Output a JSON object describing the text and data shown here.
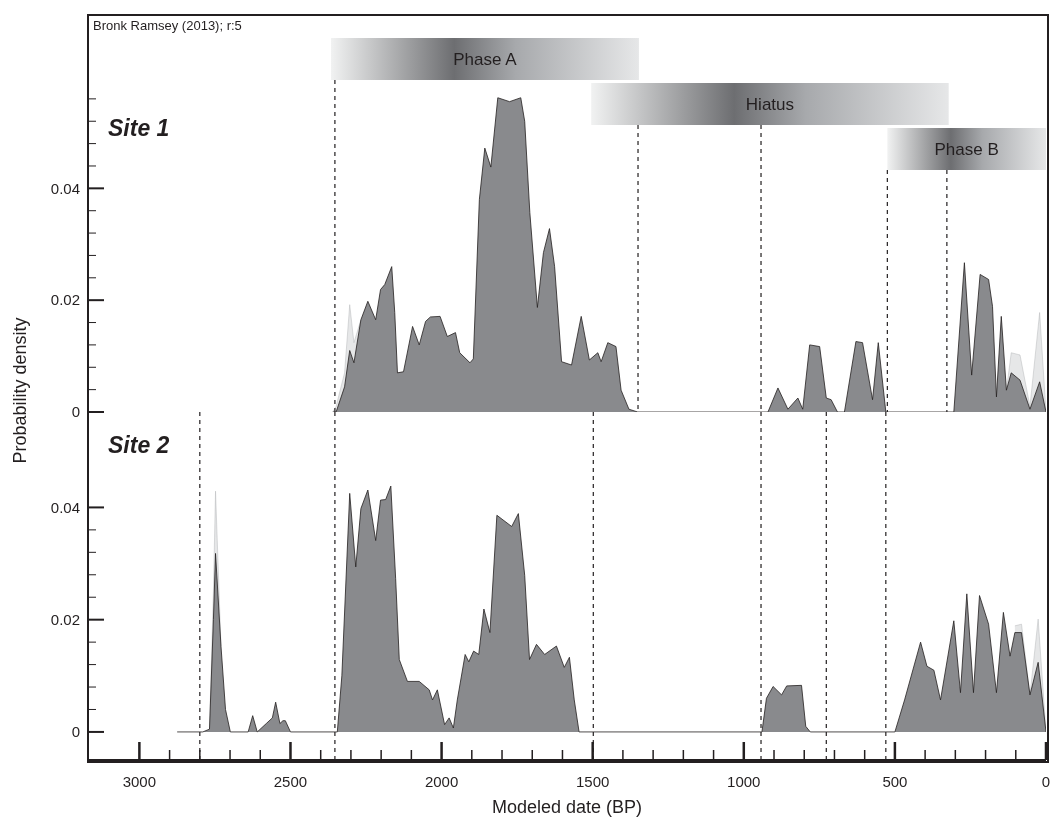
{
  "chart_data": [
    {
      "type": "area",
      "title": "Site 1",
      "xlim": [
        3170,
        0
      ],
      "ylim": [
        0,
        0.071
      ],
      "tick_labels": "y",
      "yticks": [
        0,
        {
          "value": 0.004,
          "label": null
        },
        {
          "value": 0.008,
          "label": null
        },
        {
          "value": 0.012,
          "label": null
        },
        {
          "value": 0.016,
          "label": null
        },
        0.02,
        {
          "value": 0.024,
          "label": null
        },
        {
          "value": 0.028,
          "label": null
        },
        {
          "value": 0.032,
          "label": null
        },
        {
          "value": 0.036,
          "label": null
        },
        0.04,
        {
          "value": 0.044,
          "label": null
        },
        {
          "value": 0.048,
          "label": null
        },
        {
          "value": 0.052,
          "label": null
        },
        {
          "value": 0.056,
          "label": null
        }
      ],
      "annotations": [
        "Bronk Ramsey (2013); r:5"
      ],
      "x": [
        2360,
        2349,
        2321,
        2304,
        2290,
        2267,
        2244,
        2218,
        2202,
        2188,
        2165,
        2155,
        2146,
        2126,
        2096,
        2074,
        2053,
        2037,
        2005,
        1981,
        1954,
        1940,
        1906,
        1895,
        1875,
        1857,
        1837,
        1814,
        1775,
        1738,
        1725,
        1708,
        1683,
        1663,
        1643,
        1626,
        1603,
        1570,
        1538,
        1511,
        1483,
        1472,
        1450,
        1423,
        1406,
        1380,
        1351,
        953,
        920,
        887,
        854,
        821,
        805,
        782,
        749,
        727,
        711,
        690,
        667,
        629,
        607,
        574,
        555,
        530,
        305,
        270,
        246,
        218,
        190,
        177,
        164,
        148,
        131,
        115,
        86,
        53,
        21,
        0
      ],
      "series": [
        {
          "color": "#e6e7e8",
          "values": [
            0,
            0.001,
            0.007,
            0.0192,
            0.0124,
            0.0165,
            null,
            null,
            null,
            null,
            null,
            null,
            null,
            null,
            null,
            null,
            null,
            null,
            null,
            null,
            null,
            null,
            null,
            null,
            null,
            null,
            null,
            null,
            null,
            null,
            null,
            null,
            null,
            null,
            null,
            null,
            null,
            null,
            null,
            null,
            null,
            null,
            null,
            null,
            null,
            null,
            null,
            null,
            null,
            null,
            null,
            null,
            null,
            null,
            null,
            null,
            null,
            null,
            null,
            null,
            null,
            null,
            null,
            null,
            null,
            null,
            null,
            null,
            null,
            null,
            null,
            null,
            0.0039,
            0.0106,
            0.0102,
            0.001,
            0.0178,
            0
          ]
        },
        {
          "color": "#898a8d",
          "values": [
            0,
            0,
            0.0045,
            0.011,
            0.0088,
            0.0165,
            0.0198,
            0.0165,
            0.0219,
            0.0228,
            0.026,
            0.0178,
            0.007,
            0.0072,
            0.0153,
            0.012,
            0.0162,
            0.017,
            0.0171,
            0.0135,
            0.0142,
            0.0106,
            0.0088,
            0.0095,
            0.038,
            0.0472,
            0.0438,
            0.0562,
            0.0555,
            0.0562,
            0.052,
            0.0357,
            0.0187,
            0.0285,
            0.0328,
            0.026,
            0.009,
            0.0084,
            0.0171,
            0.0093,
            0.0106,
            0.009,
            0.0124,
            0.0117,
            0.0039,
            0.0005,
            0,
            0,
            0,
            0.0043,
            0.0005,
            0.0025,
            0.0005,
            0.012,
            0.0117,
            0.0025,
            0.0022,
            0,
            0,
            0.0126,
            0.0124,
            0.0022,
            0.0124,
            0,
            0,
            0.0267,
            0.0066,
            0.0246,
            0.0237,
            0.0189,
            0.0027,
            0.0171,
            0.0039,
            0.007,
            0.0057,
            0.0005,
            0.0054,
            0
          ]
        }
      ],
      "bands": [
        {
          "axis": "x",
          "from": 2366,
          "to": 1347,
          "label": "Phase A"
        },
        {
          "axis": "x",
          "from": 1505,
          "to": 322,
          "label": "Hiatus"
        },
        {
          "axis": "x",
          "from": 525,
          "to": 0,
          "label": "Phase B"
        }
      ],
      "ref_lines": [
        {
          "axis": "x",
          "value": 2353,
          "line_style": "dashed"
        },
        {
          "axis": "x",
          "value": 1350,
          "line_style": "dashed"
        },
        {
          "axis": "x",
          "value": 943,
          "line_style": "dashed"
        },
        {
          "axis": "x",
          "value": 525,
          "line_style": "dashed"
        },
        {
          "axis": "x",
          "value": 328,
          "line_style": "dashed"
        }
      ]
    },
    {
      "type": "area",
      "title": "Site 2",
      "xlabel": "Modeled date (BP)",
      "ylabel": "Probability density",
      "xlim": [
        3170,
        0
      ],
      "ylim": [
        -0.005,
        0.057
      ],
      "xticks": [
        3000,
        {
          "value": 2900,
          "label": null
        },
        {
          "value": 2800,
          "label": null
        },
        {
          "value": 2700,
          "label": null
        },
        {
          "value": 2600,
          "label": null
        },
        2500,
        {
          "value": 2400,
          "label": null
        },
        {
          "value": 2300,
          "label": null
        },
        {
          "value": 2200,
          "label": null
        },
        {
          "value": 2100,
          "label": null
        },
        2000,
        {
          "value": 1900,
          "label": null
        },
        {
          "value": 1800,
          "label": null
        },
        {
          "value": 1700,
          "label": null
        },
        {
          "value": 1600,
          "label": null
        },
        1500,
        {
          "value": 1400,
          "label": null
        },
        {
          "value": 1300,
          "label": null
        },
        {
          "value": 1200,
          "label": null
        },
        {
          "value": 1100,
          "label": null
        },
        1000,
        {
          "value": 900,
          "label": null
        },
        {
          "value": 800,
          "label": null
        },
        {
          "value": 700,
          "label": null
        },
        {
          "value": 600,
          "label": null
        },
        500,
        {
          "value": 400,
          "label": null
        },
        {
          "value": 300,
          "label": null
        },
        {
          "value": 200,
          "label": null
        },
        {
          "value": 100,
          "label": null
        },
        0
      ],
      "yticks": [
        0,
        {
          "value": 0.004,
          "label": null
        },
        {
          "value": 0.008,
          "label": null
        },
        {
          "value": 0.012,
          "label": null
        },
        {
          "value": 0.016,
          "label": null
        },
        0.02,
        {
          "value": 0.024,
          "label": null
        },
        {
          "value": 0.028,
          "label": null
        },
        {
          "value": 0.032,
          "label": null
        },
        {
          "value": 0.036,
          "label": null
        },
        0.04
      ],
      "x": [
        2875,
        2790,
        2768,
        2755,
        2748,
        2730,
        2715,
        2699,
        2640,
        2625,
        2610,
        2580,
        2560,
        2549,
        2535,
        2525,
        2517,
        2500,
        2345,
        2330,
        2304,
        2284,
        2267,
        2244,
        2218,
        2202,
        2185,
        2168,
        2152,
        2140,
        2113,
        2074,
        2041,
        2030,
        2014,
        1990,
        1975,
        1961,
        1948,
        1922,
        1910,
        1894,
        1877,
        1860,
        1840,
        1817,
        1768,
        1746,
        1725,
        1709,
        1686,
        1659,
        1620,
        1594,
        1577,
        1561,
        1545,
        940,
        925,
        903,
        875,
        858,
        809,
        795,
        780,
        500,
        468,
        415,
        394,
        371,
        349,
        305,
        283,
        262,
        240,
        220,
        190,
        164,
        141,
        119,
        103,
        81,
        53,
        26,
        0
      ],
      "series": [
        {
          "color": "#e6e7e8",
          "values": [
            null,
            null,
            0.0005,
            0.025,
            0.0429,
            0.0153,
            null,
            null,
            null,
            null,
            null,
            null,
            null,
            null,
            null,
            null,
            null,
            null,
            null,
            null,
            null,
            null,
            null,
            null,
            null,
            null,
            null,
            null,
            null,
            null,
            null,
            null,
            null,
            null,
            null,
            null,
            null,
            null,
            null,
            null,
            null,
            null,
            null,
            null,
            null,
            null,
            null,
            null,
            null,
            null,
            null,
            null,
            null,
            null,
            null,
            null,
            null,
            null,
            null,
            null,
            null,
            null,
            null,
            null,
            null,
            null,
            null,
            null,
            null,
            null,
            null,
            null,
            null,
            null,
            null,
            null,
            null,
            null,
            null,
            null,
            0.0189,
            0.0192,
            0.0066,
            0.0201,
            0
          ]
        },
        {
          "color": "#898a8d",
          "values": [
            0,
            0,
            0.0005,
            0.02,
            0.0318,
            0.0153,
            0.004,
            0,
            0,
            0.0029,
            0,
            0.0015,
            0.0025,
            0.0053,
            0.0015,
            0.002,
            0.002,
            0,
            0,
            0.01,
            0.0425,
            0.0294,
            0.0398,
            0.0431,
            0.0341,
            0.0413,
            0.0414,
            0.0438,
            0.0273,
            0.0129,
            0.009,
            0.009,
            0.0075,
            0.0057,
            0.0075,
            0.0013,
            0.0025,
            0.0007,
            0.0057,
            0.0138,
            0.0125,
            0.0144,
            0.0138,
            0.0219,
            0.0177,
            0.0386,
            0.0366,
            0.0389,
            0.0279,
            0.0129,
            0.0156,
            0.0138,
            0.0153,
            0.0115,
            0.0133,
            0.0057,
            0,
            0,
            0.006,
            0.0081,
            0.0066,
            0.0082,
            0.0083,
            0.001,
            0,
            0,
            0.0057,
            0.016,
            0.0117,
            0.011,
            0.0057,
            0.0198,
            0.007,
            0.0246,
            0.007,
            0.0243,
            0.0192,
            0.007,
            0.0213,
            0.0135,
            0.0177,
            0.0177,
            0.0066,
            0.0124,
            0
          ]
        }
      ],
      "ref_lines": [
        {
          "axis": "x",
          "value": 2800,
          "line_style": "dashed"
        },
        {
          "axis": "x",
          "value": 2353,
          "line_style": "dashed"
        },
        {
          "axis": "x",
          "value": 1498,
          "line_style": "dashed"
        },
        {
          "axis": "x",
          "value": 943,
          "line_style": "dashed"
        },
        {
          "axis": "x",
          "value": 727,
          "line_style": "dashed"
        },
        {
          "axis": "x",
          "value": 530,
          "line_style": "dashed"
        }
      ]
    }
  ]
}
